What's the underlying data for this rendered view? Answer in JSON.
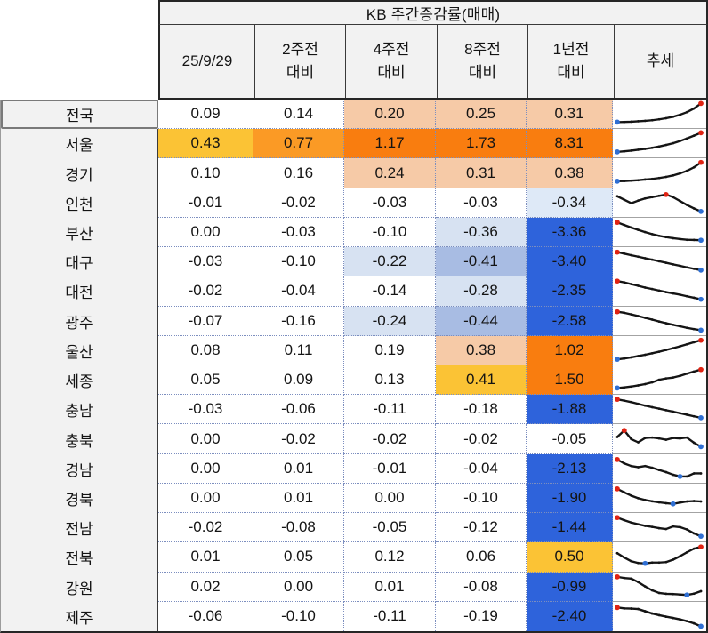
{
  "header": {
    "group_title": "KB 주간증감률(매매)",
    "columns": [
      {
        "l1": "25/9/29",
        "l2": ""
      },
      {
        "l1": "2주전",
        "l2": "대비"
      },
      {
        "l1": "4주전",
        "l2": "대비"
      },
      {
        "l1": "8주전",
        "l2": "대비"
      },
      {
        "l1": "1년전",
        "l2": "대비"
      },
      {
        "l1": "추세",
        "l2": ""
      }
    ]
  },
  "palette": {
    "w": "#FFFFFF",
    "sal": "#F6CAA7",
    "gold": "#FBC335",
    "org": "#FB9A25",
    "dorg": "#F97D0F",
    "b1": "#DEE9F7",
    "b2": "#D7E2F2",
    "b3": "#A8BCE3",
    "b4": "#2E63DB"
  },
  "spark_colors": {
    "line": "#141414",
    "high": "#E02313",
    "low": "#2F6FD3"
  },
  "rows": [
    {
      "region": "전국",
      "selected": true,
      "values": [
        "0.09",
        "0.14",
        "0.20",
        "0.25",
        "0.31"
      ],
      "colors": [
        "w",
        "w",
        "sal",
        "sal",
        "sal"
      ],
      "spark": {
        "y": [
          10,
          11,
          12,
          14,
          16,
          19,
          23,
          28,
          35,
          44,
          56,
          73,
          96
        ],
        "hi": 12,
        "lo": 0
      }
    },
    {
      "region": "서울",
      "selected": false,
      "values": [
        "0.43",
        "0.77",
        "1.17",
        "1.73",
        "8.31"
      ],
      "colors": [
        "gold",
        "org",
        "dorg",
        "dorg",
        "dorg"
      ],
      "spark": {
        "y": [
          8,
          11,
          14,
          18,
          22,
          27,
          33,
          40,
          48,
          58,
          70,
          83,
          96
        ],
        "hi": 12,
        "lo": 0
      }
    },
    {
      "region": "경기",
      "selected": false,
      "values": [
        "0.10",
        "0.16",
        "0.24",
        "0.31",
        "0.38"
      ],
      "colors": [
        "w",
        "w",
        "sal",
        "sal",
        "sal"
      ],
      "spark": {
        "y": [
          8,
          9,
          11,
          13,
          16,
          19,
          23,
          28,
          35,
          44,
          56,
          72,
          95
        ],
        "hi": 12,
        "lo": 0
      }
    },
    {
      "region": "인천",
      "selected": false,
      "values": [
        "-0.01",
        "-0.02",
        "-0.03",
        "-0.03",
        "-0.34"
      ],
      "colors": [
        "w",
        "w",
        "w",
        "w",
        "b1"
      ],
      "spark": {
        "y": [
          78,
          62,
          46,
          58,
          68,
          74,
          80,
          86,
          74,
          56,
          38,
          22,
          8
        ],
        "hi": 7,
        "lo": 12
      }
    },
    {
      "region": "부산",
      "selected": false,
      "values": [
        "0.00",
        "-0.03",
        "-0.10",
        "-0.36",
        "-3.36"
      ],
      "colors": [
        "w",
        "w",
        "w",
        "b2",
        "b4"
      ],
      "spark": {
        "y": [
          93,
          81,
          69,
          58,
          48,
          39,
          31,
          25,
          20,
          16,
          13,
          12,
          11
        ],
        "hi": 0,
        "lo": 12
      }
    },
    {
      "region": "대구",
      "selected": false,
      "values": [
        "-0.03",
        "-0.10",
        "-0.22",
        "-0.41",
        "-3.40"
      ],
      "colors": [
        "w",
        "w",
        "b2",
        "b3",
        "b4"
      ],
      "spark": {
        "y": [
          91,
          84,
          77,
          70,
          63,
          56,
          49,
          42,
          35,
          28,
          21,
          14,
          8
        ],
        "hi": 0,
        "lo": 12
      }
    },
    {
      "region": "대전",
      "selected": false,
      "values": [
        "-0.02",
        "-0.04",
        "-0.14",
        "-0.28",
        "-2.35"
      ],
      "colors": [
        "w",
        "w",
        "w",
        "b2",
        "b4"
      ],
      "spark": {
        "y": [
          93,
          87,
          79,
          71,
          63,
          56,
          49,
          42,
          36,
          30,
          23,
          16,
          9
        ],
        "hi": 0,
        "lo": 12
      }
    },
    {
      "region": "광주",
      "selected": false,
      "values": [
        "-0.07",
        "-0.16",
        "-0.24",
        "-0.44",
        "-2.58"
      ],
      "colors": [
        "w",
        "w",
        "b2",
        "b3",
        "b4"
      ],
      "spark": {
        "y": [
          91,
          86,
          79,
          71,
          63,
          55,
          46,
          38,
          31,
          24,
          17,
          11,
          6
        ],
        "hi": 0,
        "lo": 12
      }
    },
    {
      "region": "울산",
      "selected": false,
      "values": [
        "0.08",
        "0.11",
        "0.19",
        "0.38",
        "1.02"
      ],
      "colors": [
        "w",
        "w",
        "w",
        "sal",
        "dorg"
      ],
      "spark": {
        "y": [
          7,
          11,
          16,
          22,
          28,
          35,
          42,
          50,
          58,
          67,
          76,
          86,
          95
        ],
        "hi": 12,
        "lo": 0
      }
    },
    {
      "region": "세종",
      "selected": false,
      "values": [
        "0.05",
        "0.09",
        "0.13",
        "0.41",
        "1.50"
      ],
      "colors": [
        "w",
        "w",
        "w",
        "gold",
        "dorg"
      ],
      "spark": {
        "y": [
          10,
          13,
          17,
          22,
          28,
          36,
          48,
          54,
          58,
          66,
          76,
          86,
          95
        ],
        "hi": 12,
        "lo": 0
      }
    },
    {
      "region": "충남",
      "selected": false,
      "values": [
        "-0.03",
        "-0.06",
        "-0.11",
        "-0.18",
        "-1.88"
      ],
      "colors": [
        "w",
        "w",
        "w",
        "w",
        "b4"
      ],
      "spark": {
        "y": [
          93,
          87,
          80,
          72,
          64,
          57,
          50,
          43,
          36,
          29,
          22,
          15,
          8
        ],
        "hi": 0,
        "lo": 12
      }
    },
    {
      "region": "충북",
      "selected": false,
      "values": [
        "0.00",
        "-0.02",
        "-0.02",
        "-0.02",
        "-0.05"
      ],
      "colors": [
        "w",
        "w",
        "w",
        "w",
        "w"
      ],
      "spark": {
        "y": [
          55,
          85,
          45,
          30,
          50,
          52,
          48,
          42,
          50,
          48,
          52,
          28,
          10
        ],
        "hi": 1,
        "lo": 12
      }
    },
    {
      "region": "경남",
      "selected": false,
      "values": [
        "0.00",
        "0.01",
        "-0.01",
        "-0.04",
        "-2.13"
      ],
      "colors": [
        "w",
        "w",
        "w",
        "w",
        "b4"
      ],
      "spark": {
        "y": [
          90,
          72,
          60,
          55,
          60,
          52,
          42,
          32,
          20,
          12,
          12,
          26,
          26
        ],
        "hi": 0,
        "lo": 9
      }
    },
    {
      "region": "경북",
      "selected": false,
      "values": [
        "0.00",
        "0.01",
        "0.00",
        "-0.10",
        "-1.90"
      ],
      "colors": [
        "w",
        "w",
        "w",
        "w",
        "b4"
      ],
      "spark": {
        "y": [
          90,
          74,
          59,
          47,
          39,
          33,
          28,
          24,
          21,
          27,
          32,
          34,
          32
        ],
        "hi": 0,
        "lo": 8
      }
    },
    {
      "region": "전남",
      "selected": false,
      "values": [
        "-0.02",
        "-0.08",
        "-0.05",
        "-0.12",
        "-1.44"
      ],
      "colors": [
        "w",
        "w",
        "w",
        "w",
        "b4"
      ],
      "spark": {
        "y": [
          93,
          81,
          70,
          62,
          55,
          50,
          44,
          40,
          52,
          49,
          38,
          20,
          7
        ],
        "hi": 0,
        "lo": 12
      }
    },
    {
      "region": "전북",
      "selected": false,
      "values": [
        "0.01",
        "0.05",
        "0.12",
        "0.06",
        "0.50"
      ],
      "colors": [
        "w",
        "w",
        "w",
        "w",
        "gold"
      ],
      "spark": {
        "y": [
          64,
          44,
          27,
          19,
          17,
          21,
          21,
          23,
          34,
          50,
          68,
          85,
          93
        ],
        "hi": 12,
        "lo": 4
      }
    },
    {
      "region": "강원",
      "selected": false,
      "values": [
        "0.02",
        "0.00",
        "0.01",
        "-0.08",
        "-0.99"
      ],
      "colors": [
        "w",
        "w",
        "w",
        "w",
        "b4"
      ],
      "spark": {
        "y": [
          94,
          89,
          86,
          70,
          50,
          32,
          20,
          16,
          15,
          13,
          11,
          17,
          28
        ],
        "hi": 0,
        "lo": 10
      }
    },
    {
      "region": "제주",
      "selected": false,
      "values": [
        "-0.06",
        "-0.10",
        "-0.11",
        "-0.19",
        "-2.40"
      ],
      "colors": [
        "w",
        "w",
        "w",
        "w",
        "b4"
      ],
      "spark": {
        "y": [
          89,
          85,
          84,
          82,
          72,
          62,
          55,
          48,
          42,
          36,
          28,
          18,
          5
        ],
        "hi": 0,
        "lo": 12
      }
    }
  ]
}
